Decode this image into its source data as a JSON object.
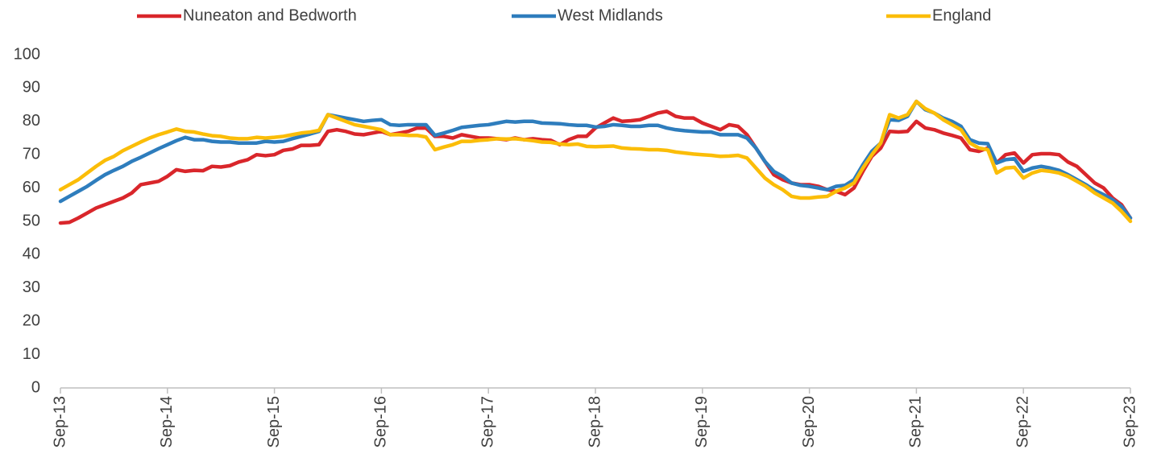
{
  "chart_data": {
    "type": "line",
    "categories": [
      "Sep-13",
      null,
      null,
      null,
      null,
      null,
      null,
      null,
      null,
      null,
      null,
      null,
      "Sep-14",
      null,
      null,
      null,
      null,
      null,
      null,
      null,
      null,
      null,
      null,
      null,
      "Sep-15",
      null,
      null,
      null,
      null,
      null,
      null,
      null,
      null,
      null,
      null,
      null,
      "Sep-16",
      null,
      null,
      null,
      null,
      null,
      null,
      null,
      null,
      null,
      null,
      null,
      "Sep-17",
      null,
      null,
      null,
      null,
      null,
      null,
      null,
      null,
      null,
      null,
      null,
      "Sep-18",
      null,
      null,
      null,
      null,
      null,
      null,
      null,
      null,
      null,
      null,
      null,
      "Sep-19",
      null,
      null,
      null,
      null,
      null,
      null,
      null,
      null,
      null,
      null,
      null,
      "Sep-20",
      null,
      null,
      null,
      null,
      null,
      null,
      null,
      null,
      null,
      null,
      null,
      "Sep-21",
      null,
      null,
      null,
      null,
      null,
      null,
      null,
      null,
      null,
      null,
      null,
      "Sep-22",
      null,
      null,
      null,
      null,
      null,
      null,
      null,
      null,
      null,
      null,
      null,
      "Sep-23"
    ],
    "series": [
      {
        "name": "Nuneaton and Bedworth",
        "color": "#d9262b",
        "values": [
          49.5,
          49.7,
          51,
          52.5,
          54,
          55,
          56,
          57,
          58.5,
          61,
          61.5,
          62,
          63.5,
          65.5,
          65,
          65.3,
          65.2,
          66.5,
          66.3,
          66.7,
          67.8,
          68.5,
          70,
          69.7,
          70,
          71.3,
          71.7,
          72.8,
          72.8,
          73,
          77,
          77.5,
          77,
          76.2,
          76,
          76.5,
          77,
          76,
          76.5,
          77,
          78,
          78,
          75.5,
          75.5,
          75,
          76,
          75.5,
          75,
          75,
          74.8,
          74.5,
          75,
          74.5,
          74.8,
          74.5,
          74.3,
          73,
          74.5,
          75.5,
          75.5,
          78,
          79.5,
          81,
          80,
          80.2,
          80.5,
          81.5,
          82.5,
          83,
          81.5,
          81,
          81,
          79.5,
          78.5,
          77.5,
          79,
          78.5,
          76,
          72,
          68,
          64,
          62.5,
          61.5,
          61,
          61,
          60.5,
          59.5,
          59,
          58,
          60,
          65,
          69.5,
          72,
          77,
          76.8,
          77,
          80,
          78,
          77.5,
          76.5,
          75.8,
          75,
          71.5,
          71,
          72,
          67.5,
          70,
          70.5,
          67.5,
          70,
          70.3,
          70.3,
          70,
          67.8,
          66.5,
          64,
          61.5,
          60,
          57,
          55,
          51
        ]
      },
      {
        "name": "West Midlands",
        "color": "#2e7dbd",
        "values": [
          56,
          57.5,
          59,
          60.5,
          62.3,
          64,
          65.3,
          66.5,
          68,
          69.2,
          70.5,
          71.8,
          73,
          74.2,
          75.2,
          74.5,
          74.5,
          74,
          73.8,
          73.8,
          73.5,
          73.5,
          73.5,
          74,
          73.8,
          74,
          74.8,
          75.5,
          76.2,
          77,
          82,
          81.5,
          81,
          80.5,
          80,
          80.3,
          80.5,
          79,
          78.8,
          79,
          79,
          79,
          75.8,
          76.5,
          77.3,
          78.2,
          78.5,
          78.8,
          79,
          79.5,
          80,
          79.8,
          80,
          80,
          79.5,
          79.4,
          79.3,
          79,
          78.8,
          78.8,
          78.3,
          78.5,
          79,
          78.8,
          78.5,
          78.5,
          78.8,
          78.8,
          78,
          77.5,
          77.2,
          77,
          76.8,
          76.8,
          76,
          76,
          76,
          75,
          72,
          68,
          65,
          63.5,
          61.5,
          60.8,
          60.5,
          60,
          59.5,
          60.5,
          60.8,
          62.5,
          67,
          71,
          73.5,
          80.5,
          80.3,
          81.5,
          86,
          83.5,
          82.5,
          81,
          80,
          78.5,
          74.5,
          73.5,
          73.3,
          67.5,
          68.5,
          68.8,
          65,
          66,
          66.5,
          66,
          65.3,
          64,
          62.5,
          61,
          59.3,
          58,
          56.5,
          54.5,
          51
        ]
      },
      {
        "name": "England",
        "color": "#fbbd08",
        "values": [
          59.5,
          61,
          62.5,
          64.5,
          66.5,
          68.3,
          69.5,
          71.2,
          72.5,
          73.8,
          75,
          76,
          76.8,
          77.7,
          77,
          76.8,
          76.2,
          75.7,
          75.5,
          75,
          74.8,
          74.8,
          75.2,
          75,
          75.2,
          75.5,
          76,
          76.5,
          76.8,
          77.3,
          82,
          81,
          80,
          79,
          78.5,
          78,
          77.5,
          76,
          76,
          75.8,
          75.8,
          75.3,
          71.5,
          72.3,
          73,
          74,
          74,
          74.3,
          74.5,
          74.8,
          74.7,
          74.8,
          74.5,
          74.2,
          73.8,
          73.7,
          73.2,
          73,
          73.2,
          72.5,
          72.4,
          72.5,
          72.6,
          72,
          71.8,
          71.7,
          71.5,
          71.5,
          71.3,
          70.8,
          70.5,
          70.2,
          70,
          69.8,
          69.5,
          69.6,
          69.8,
          69,
          66,
          63,
          61,
          59.5,
          57.5,
          57,
          57,
          57.3,
          57.5,
          59,
          60,
          61.5,
          66,
          70,
          73.5,
          82,
          81,
          82,
          86,
          83.8,
          82.5,
          80.5,
          79,
          77.5,
          73.5,
          72,
          71.5,
          64.5,
          66,
          66.2,
          63,
          64.5,
          65.3,
          65,
          64.5,
          63.5,
          62,
          60.5,
          58.5,
          57,
          55.5,
          53,
          50
        ]
      }
    ],
    "ylim": [
      0,
      100
    ],
    "yticks": [
      0,
      10,
      20,
      30,
      40,
      50,
      60,
      70,
      80,
      90,
      100
    ],
    "grid": false,
    "legend": "top"
  }
}
